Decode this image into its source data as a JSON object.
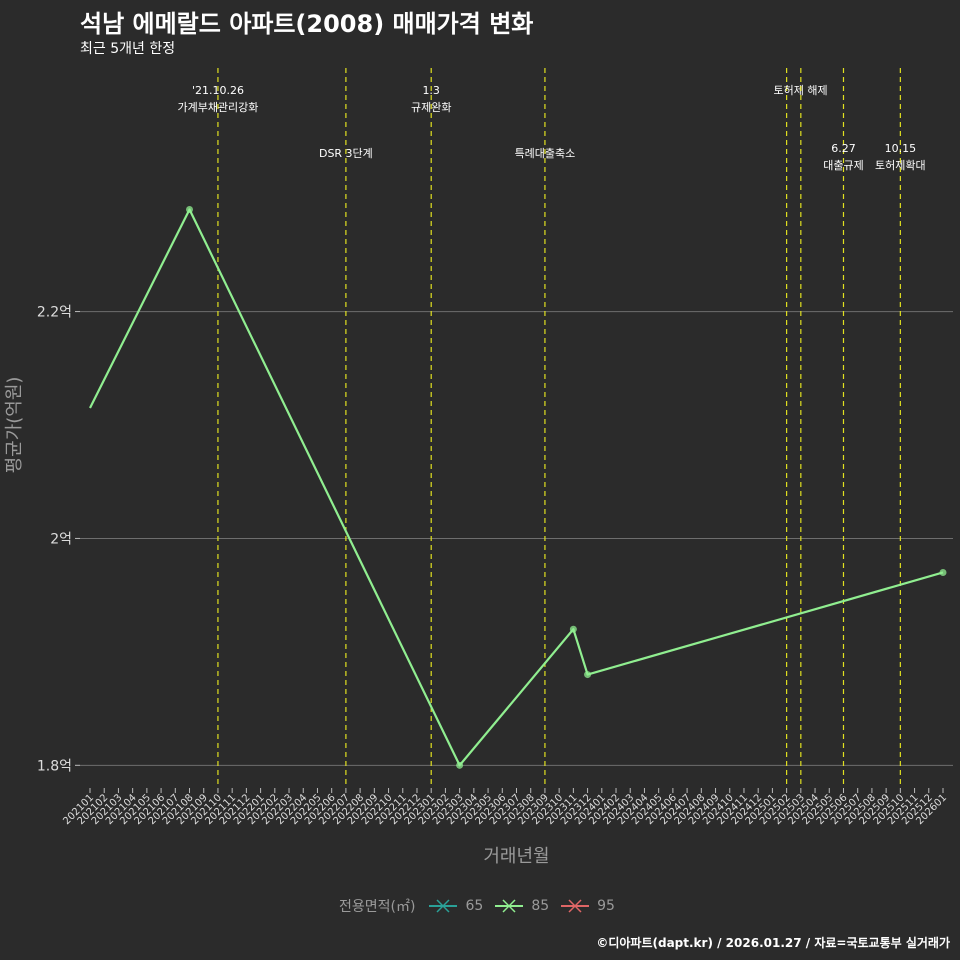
{
  "header": {
    "title": "석남 에메랄드 아파트(2008) 매매가격 변화",
    "subtitle": "최근 5개년 한정"
  },
  "caption": "©디아파트(dapt.kr) / 2026.01.27 / 자료=국토교통부 실거래가",
  "legend": {
    "title": "전용면적(㎡)",
    "items": [
      {
        "label": "65",
        "color": "#2aa198"
      },
      {
        "label": "85",
        "color": "#90ee90"
      },
      {
        "label": "95",
        "color": "#e06666"
      }
    ]
  },
  "chart_data": {
    "type": "line",
    "title": "석남 에메랄드 아파트(2008) 매매가격 변화",
    "subtitle": "최근 5개년 한정",
    "xlabel": "거래년월",
    "ylabel": "평균가(억원)",
    "categories": [
      "202101",
      "202102",
      "202103",
      "202104",
      "202105",
      "202106",
      "202107",
      "202108",
      "202109",
      "202110",
      "202111",
      "202112",
      "202201",
      "202202",
      "202203",
      "202204",
      "202205",
      "202206",
      "202207",
      "202208",
      "202209",
      "202210",
      "202211",
      "202212",
      "202301",
      "202302",
      "202303",
      "202304",
      "202305",
      "202306",
      "202307",
      "202308",
      "202309",
      "202310",
      "202311",
      "202312",
      "202401",
      "202402",
      "202403",
      "202404",
      "202405",
      "202406",
      "202407",
      "202408",
      "202409",
      "202410",
      "202411",
      "202412",
      "202501",
      "202502",
      "202503",
      "202504",
      "202505",
      "202506",
      "202507",
      "202508",
      "202509",
      "202510",
      "202511",
      "202512",
      "202601"
    ],
    "yticks": [
      {
        "value": 1.8,
        "label": "1.8억"
      },
      {
        "value": 2.0,
        "label": "2억"
      },
      {
        "value": 2.2,
        "label": "2.2억"
      }
    ],
    "ylim": [
      1.78,
      2.42
    ],
    "series": [
      {
        "name": "85",
        "color": "#90ee90",
        "points": [
          {
            "x": "202101",
            "y": 2.115,
            "marker": false
          },
          {
            "x": "202108",
            "y": 2.29,
            "marker": true
          },
          {
            "x": "202303",
            "y": 1.8,
            "marker": true
          },
          {
            "x": "202311",
            "y": 1.92,
            "marker": true
          },
          {
            "x": "202312",
            "y": 1.88,
            "marker": true
          },
          {
            "x": "202601",
            "y": 1.97,
            "marker": true
          }
        ]
      }
    ],
    "events": [
      {
        "x": "202110",
        "lines": [
          "'21.10.26",
          "가계부채관리강화"
        ],
        "row": 0
      },
      {
        "x": "202207",
        "lines": [
          "DSR 3단계"
        ],
        "row": 1
      },
      {
        "x": "202301",
        "lines": [
          "1.3",
          "규제완화"
        ],
        "row": 0
      },
      {
        "x": "202309",
        "lines": [
          "특례대출축소"
        ],
        "row": 1
      },
      {
        "x": "202502",
        "lines": [
          "토허제 해제"
        ],
        "row": 0,
        "dx": 14
      },
      {
        "x": "202503",
        "lines": [],
        "row": 0
      },
      {
        "x": "202506",
        "lines": [
          "6.27",
          "대출규제"
        ],
        "row": 2
      },
      {
        "x": "202510",
        "lines": [
          "10.15",
          "토허제확대"
        ],
        "row": 2
      }
    ]
  }
}
